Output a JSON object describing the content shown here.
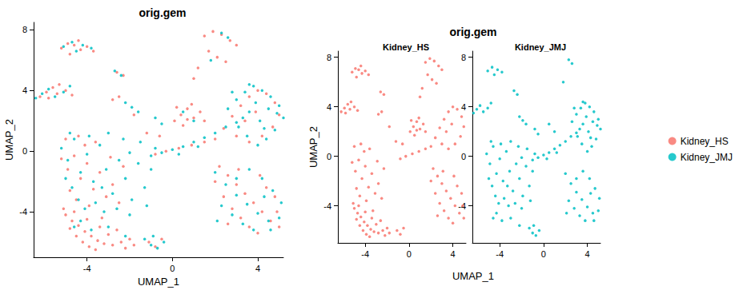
{
  "chart_data": [
    {
      "type": "scatter",
      "title": "orig.gem",
      "x_label": "UMAP_1",
      "y_label": "UMAP_2",
      "xlim": [
        -6.5,
        5.2
      ],
      "ylim": [
        -7,
        8.5
      ],
      "xticks": [
        -4,
        0,
        4
      ],
      "yticks": [
        -4,
        0,
        4,
        8
      ],
      "grid": false,
      "series": [
        {
          "name": "Kidney_HS",
          "color": "#F8766D",
          "values": [
            [
              -5.0,
              -4.2
            ],
            [
              -4.7,
              -4.6
            ],
            [
              -4.4,
              -4.9
            ],
            [
              -4.1,
              -5.3
            ],
            [
              -3.8,
              -5.6
            ],
            [
              -3.5,
              -5.9
            ],
            [
              -3.2,
              -6.1
            ],
            [
              -2.8,
              -6.2
            ],
            [
              -2.4,
              -6.0
            ],
            [
              -2.0,
              -5.8
            ],
            [
              -4.8,
              -5.1
            ],
            [
              -4.5,
              -5.6
            ],
            [
              -4.2,
              -6.0
            ],
            [
              -3.9,
              -6.3
            ],
            [
              -3.6,
              -6.5
            ],
            [
              -3.0,
              -5.5
            ],
            [
              -2.6,
              -5.2
            ],
            [
              -3.4,
              -5.0
            ],
            [
              -4.0,
              -4.5
            ],
            [
              -4.6,
              -4.0
            ],
            [
              -5.1,
              -3.8
            ],
            [
              -2.2,
              -6.4
            ],
            [
              -1.8,
              -6.2
            ],
            [
              -3.3,
              -4.4
            ],
            [
              -5.2,
              -0.5
            ],
            [
              -4.9,
              -1.2
            ],
            [
              -4.6,
              -0.3
            ],
            [
              -4.3,
              -1.8
            ],
            [
              -4.0,
              -0.8
            ],
            [
              -3.7,
              -2.5
            ],
            [
              -3.4,
              -1.4
            ],
            [
              -3.1,
              -3.0
            ],
            [
              -2.8,
              -2.2
            ],
            [
              -2.5,
              -3.4
            ],
            [
              -4.8,
              -2.6
            ],
            [
              -4.5,
              -3.2
            ],
            [
              -4.1,
              0.4
            ],
            [
              -3.6,
              0.6
            ],
            [
              -5.0,
              0.8
            ],
            [
              -4.4,
              1.0
            ],
            [
              -2.3,
              -1.0
            ],
            [
              -3.9,
              -3.6
            ],
            [
              -2.9,
              -0.4
            ],
            [
              -6.2,
              3.6
            ],
            [
              -5.9,
              3.9
            ],
            [
              -5.6,
              4.2
            ],
            [
              -5.3,
              4.4
            ],
            [
              -5.0,
              4.0
            ],
            [
              -4.7,
              3.7
            ],
            [
              -5.8,
              3.5
            ],
            [
              -5.4,
              3.8
            ],
            [
              -5.2,
              6.8
            ],
            [
              -4.9,
              7.1
            ],
            [
              -4.6,
              7.0
            ],
            [
              -4.3,
              6.7
            ],
            [
              -4.0,
              6.9
            ],
            [
              -3.7,
              6.6
            ],
            [
              -4.8,
              6.4
            ],
            [
              -4.4,
              7.3
            ],
            [
              -2.6,
              5.2
            ],
            [
              -2.3,
              5.0
            ],
            [
              -2.8,
              3.4
            ],
            [
              -2.5,
              3.6
            ],
            [
              0.1,
              2.0
            ],
            [
              0.4,
              2.4
            ],
            [
              0.7,
              2.8
            ],
            [
              1.0,
              2.2
            ],
            [
              1.3,
              2.6
            ],
            [
              0.5,
              1.7
            ],
            [
              0.9,
              3.1
            ],
            [
              0.2,
              2.9
            ],
            [
              1.5,
              2.0
            ],
            [
              0.7,
              2.1
            ],
            [
              1.5,
              7.6
            ],
            [
              1.9,
              7.9
            ],
            [
              2.3,
              7.7
            ],
            [
              2.7,
              7.3
            ],
            [
              3.0,
              7.0
            ],
            [
              2.1,
              6.2
            ],
            [
              1.7,
              6.6
            ],
            [
              2.5,
              5.9
            ],
            [
              1.2,
              5.5
            ],
            [
              1.0,
              4.8
            ],
            [
              2.0,
              0.8
            ],
            [
              2.4,
              1.5
            ],
            [
              2.8,
              2.3
            ],
            [
              3.2,
              3.0
            ],
            [
              3.6,
              3.6
            ],
            [
              4.0,
              4.0
            ],
            [
              4.4,
              3.8
            ],
            [
              4.8,
              3.2
            ],
            [
              5.0,
              2.4
            ],
            [
              4.7,
              1.6
            ],
            [
              4.2,
              1.0
            ],
            [
              3.6,
              0.6
            ],
            [
              3.0,
              1.0
            ],
            [
              3.4,
              2.0
            ],
            [
              3.9,
              2.6
            ],
            [
              -0.8,
              -0.2
            ],
            [
              -0.3,
              0.0
            ],
            [
              0.3,
              0.2
            ],
            [
              0.9,
              0.4
            ],
            [
              1.5,
              0.6
            ],
            [
              2.2,
              -1.0
            ],
            [
              2.6,
              -1.6
            ],
            [
              3.0,
              -2.2
            ],
            [
              3.4,
              -2.8
            ],
            [
              3.8,
              -3.4
            ],
            [
              4.2,
              -4.0
            ],
            [
              4.6,
              -4.6
            ],
            [
              5.0,
              -5.0
            ],
            [
              2.4,
              -3.0
            ],
            [
              2.8,
              -3.8
            ],
            [
              3.2,
              -4.4
            ],
            [
              3.6,
              -5.0
            ],
            [
              4.0,
              -5.4
            ],
            [
              4.4,
              -2.4
            ],
            [
              4.8,
              -3.0
            ],
            [
              2.0,
              -2.0
            ],
            [
              3.1,
              -1.2
            ],
            [
              4.1,
              -1.6
            ],
            [
              2.6,
              -4.8
            ],
            [
              4.9,
              -4.0
            ],
            [
              -1.1,
              -6.0
            ],
            [
              -0.8,
              -6.3
            ],
            [
              -0.5,
              -5.8
            ],
            [
              -1.2,
              1.2
            ],
            [
              -0.6,
              1.0
            ],
            [
              -1.8,
              2.4
            ]
          ]
        },
        {
          "name": "Kidney_JMJ",
          "color": "#00BFC4",
          "values": [
            [
              -5.2,
              0.2
            ],
            [
              -4.9,
              -0.6
            ],
            [
              -4.6,
              0.8
            ],
            [
              -4.3,
              -1.4
            ],
            [
              -4.0,
              -0.2
            ],
            [
              -3.7,
              -2.0
            ],
            [
              -3.4,
              0.4
            ],
            [
              -3.1,
              -1.2
            ],
            [
              -2.8,
              -2.8
            ],
            [
              -2.5,
              -0.6
            ],
            [
              -2.2,
              -1.8
            ],
            [
              -1.9,
              -3.2
            ],
            [
              -1.6,
              -0.8
            ],
            [
              -1.3,
              -2.4
            ],
            [
              -1.0,
              -1.2
            ],
            [
              -0.8,
              0.2
            ],
            [
              -4.7,
              -2.4
            ],
            [
              -4.4,
              -3.2
            ],
            [
              -4.1,
              -3.8
            ],
            [
              -3.6,
              -3.4
            ],
            [
              -3.2,
              -4.0
            ],
            [
              -2.6,
              -3.8
            ],
            [
              -2.0,
              -4.2
            ],
            [
              -4.8,
              1.2
            ],
            [
              -3.9,
              1.0
            ],
            [
              -3.0,
              1.2
            ],
            [
              -2.3,
              0.8
            ],
            [
              -1.5,
              0.6
            ],
            [
              -3.3,
              -2.4
            ],
            [
              -2.0,
              -0.1
            ],
            [
              -5.0,
              -1.8
            ],
            [
              -1.2,
              -3.6
            ],
            [
              -4.3,
              -4.6
            ],
            [
              -3.8,
              -5.2
            ],
            [
              -3.0,
              -5.0
            ],
            [
              -2.2,
              -5.6
            ],
            [
              -4.6,
              -5.0
            ],
            [
              -1.3,
              -5.8
            ],
            [
              -1.0,
              -6.2
            ],
            [
              -0.7,
              -6.4
            ],
            [
              -0.4,
              -6.0
            ],
            [
              -0.9,
              -5.6
            ],
            [
              -6.4,
              3.5
            ],
            [
              -6.1,
              3.8
            ],
            [
              -5.8,
              4.1
            ],
            [
              -5.5,
              3.6
            ],
            [
              -5.1,
              3.9
            ],
            [
              -4.8,
              4.3
            ],
            [
              -5.1,
              6.9
            ],
            [
              -4.7,
              7.2
            ],
            [
              -4.2,
              7.0
            ],
            [
              -3.8,
              6.8
            ],
            [
              -4.5,
              6.6
            ],
            [
              -2.7,
              5.3
            ],
            [
              -2.4,
              5.0
            ],
            [
              -2.2,
              3.2
            ],
            [
              -1.9,
              2.9
            ],
            [
              -1.6,
              2.6
            ],
            [
              -0.8,
              2.2
            ],
            [
              -0.5,
              1.8
            ],
            [
              -1.0,
              -0.3
            ],
            [
              -0.5,
              -0.1
            ],
            [
              0.0,
              0.1
            ],
            [
              0.5,
              0.3
            ],
            [
              1.0,
              0.6
            ],
            [
              1.5,
              0.9
            ],
            [
              2.0,
              1.2
            ],
            [
              2.5,
              1.6
            ],
            [
              3.0,
              1.9
            ],
            [
              0.3,
              -0.2
            ],
            [
              1.2,
              0.3
            ],
            [
              0.5,
              2.6
            ],
            [
              1.0,
              2.0
            ],
            [
              2.3,
              7.8
            ],
            [
              2.6,
              7.5
            ],
            [
              1.8,
              6.0
            ],
            [
              2.6,
              2.8
            ],
            [
              3.0,
              3.4
            ],
            [
              3.4,
              3.9
            ],
            [
              3.8,
              4.3
            ],
            [
              4.2,
              4.0
            ],
            [
              4.6,
              3.6
            ],
            [
              5.0,
              3.0
            ],
            [
              5.2,
              2.2
            ],
            [
              4.8,
              1.4
            ],
            [
              4.4,
              0.8
            ],
            [
              4.0,
              0.4
            ],
            [
              3.5,
              1.0
            ],
            [
              3.1,
              1.6
            ],
            [
              3.6,
              2.6
            ],
            [
              4.1,
              2.0
            ],
            [
              4.5,
              2.8
            ],
            [
              3.9,
              3.2
            ],
            [
              4.9,
              2.5
            ],
            [
              3.3,
              2.2
            ],
            [
              4.3,
              1.5
            ],
            [
              2.8,
              3.9
            ],
            [
              3.6,
              4.4
            ],
            [
              2.0,
              -1.4
            ],
            [
              2.5,
              -2.2
            ],
            [
              3.0,
              -2.9
            ],
            [
              3.5,
              -3.5
            ],
            [
              4.0,
              -4.1
            ],
            [
              4.5,
              -4.6
            ],
            [
              5.0,
              -4.4
            ],
            [
              5.1,
              -3.4
            ],
            [
              4.7,
              -2.6
            ],
            [
              4.2,
              -1.8
            ],
            [
              3.6,
              -1.2
            ],
            [
              2.3,
              -3.6
            ],
            [
              2.8,
              -4.2
            ],
            [
              3.3,
              -4.8
            ],
            [
              3.8,
              -5.2
            ],
            [
              4.3,
              -3.0
            ],
            [
              3.0,
              -1.8
            ],
            [
              4.6,
              -5.2
            ],
            [
              2.1,
              -4.6
            ]
          ]
        }
      ]
    },
    {
      "type": "scatter",
      "title": "orig.gem",
      "x_label": "UMAP_1",
      "y_label": "UMAP_2",
      "xlim": [
        -6.5,
        5.2
      ],
      "ylim": [
        -7,
        8.5
      ],
      "xticks": [
        -4,
        0,
        4
      ],
      "yticks": [
        -4,
        0,
        4,
        8
      ],
      "grid": false,
      "legend": "right",
      "facets": [
        {
          "title": "Kidney_HS",
          "series": "Kidney_HS"
        },
        {
          "title": "Kidney_JMJ",
          "series": "Kidney_JMJ"
        }
      ]
    }
  ]
}
